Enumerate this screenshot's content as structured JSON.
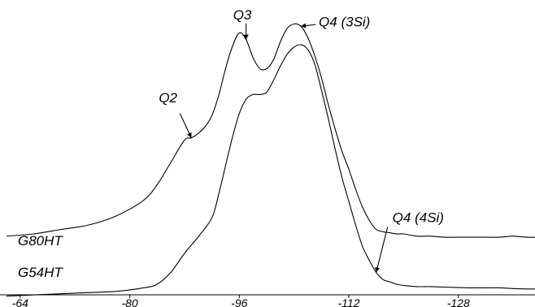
{
  "chart_data": {
    "type": "line",
    "title": "",
    "xlabel": "",
    "ylabel": "",
    "xlim": [
      -62,
      -140
    ],
    "x_reversed": true,
    "xticks": [
      -64,
      -80,
      -96,
      -112,
      -128
    ],
    "tick_labels": [
      "-64",
      "-80",
      "-96",
      "-112",
      "-128"
    ],
    "series": [
      {
        "name": "G80HT",
        "x": [
          -62,
          -66,
          -70,
          -74,
          -78,
          -82,
          -84,
          -86,
          -88,
          -89,
          -90,
          -91,
          -92,
          -93,
          -94,
          -95,
          -96,
          -97,
          -98,
          -99,
          -100,
          -101,
          -102,
          -103,
          -104,
          -105,
          -106,
          -107,
          -108,
          -109,
          -110,
          -111,
          -112,
          -113,
          -114,
          -115,
          -116,
          -117,
          -118,
          -119,
          -120,
          -122,
          -124,
          -126,
          -128,
          -130,
          -132,
          -134,
          -136,
          -138,
          -140
        ],
        "y": [
          0.07,
          0.08,
          0.1,
          0.12,
          0.16,
          0.23,
          0.3,
          0.4,
          0.5,
          0.51,
          0.53,
          0.56,
          0.61,
          0.7,
          0.82,
          0.92,
          0.98,
          0.95,
          0.87,
          0.82,
          0.82,
          0.86,
          0.94,
          1.0,
          1.02,
          1.01,
          0.96,
          0.88,
          0.78,
          0.66,
          0.55,
          0.45,
          0.37,
          0.28,
          0.2,
          0.14,
          0.1,
          0.09,
          0.085,
          0.08,
          0.08,
          0.07,
          0.07,
          0.065,
          0.065,
          0.065,
          0.065,
          0.065,
          0.07,
          0.065,
          0.065
        ]
      },
      {
        "name": "G54HT",
        "x": [
          -62,
          -66,
          -70,
          -74,
          -78,
          -82,
          -84,
          -86,
          -88,
          -90,
          -92,
          -93,
          -94,
          -95,
          -96,
          -97,
          -98,
          -99,
          -100,
          -101,
          -102,
          -103,
          -104,
          -105,
          -106,
          -107,
          -108,
          -109,
          -110,
          -111,
          -112,
          -113,
          -114,
          -115,
          -116,
          -117,
          -118,
          -119,
          -120,
          -122,
          -124,
          -126,
          -128,
          -130,
          -132,
          -134,
          -136,
          -138,
          -140
        ],
        "y": [
          -0.05,
          -0.045,
          -0.04,
          -0.035,
          -0.03,
          -0.015,
          0.0,
          0.05,
          0.13,
          0.2,
          0.28,
          0.38,
          0.5,
          0.62,
          0.72,
          0.78,
          0.8,
          0.8,
          0.81,
          0.86,
          0.92,
          0.97,
          1.0,
          1.01,
          0.99,
          0.93,
          0.82,
          0.7,
          0.57,
          0.45,
          0.35,
          0.25,
          0.16,
          0.1,
          0.05,
          0.02,
          0.01,
          0.0,
          -0.005,
          -0.01,
          -0.01,
          -0.012,
          -0.014,
          -0.015,
          -0.015,
          -0.015,
          -0.018,
          -0.02,
          -0.02
        ]
      }
    ],
    "annotations": [
      {
        "text": "Q2",
        "x": -89,
        "series": 0
      },
      {
        "text": "Q3",
        "x": -97,
        "series": 0
      },
      {
        "text": "Q4 (3Si)",
        "x": -105,
        "series": 0
      },
      {
        "text": "Q4 (4Si)",
        "x": -116,
        "series": 1
      }
    ],
    "grid": false
  }
}
